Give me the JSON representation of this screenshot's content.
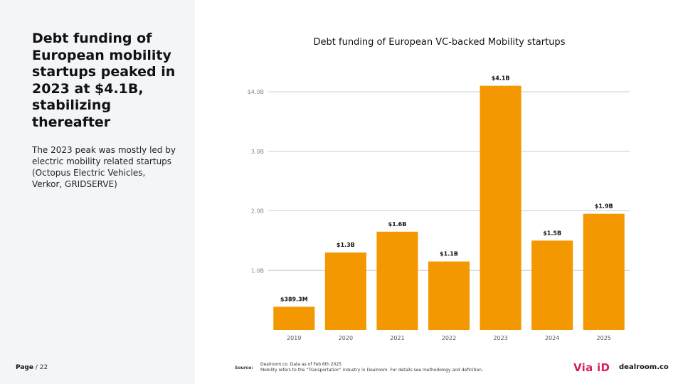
{
  "sidebar": {
    "headline": "Debt funding of European mobility startups peaked in 2023 at $4.1B, stabilizing thereafter",
    "subtext": "The 2023 peak was mostly led by electric mobility related startups (Octopus Electric Vehicles, Verkor, GRIDSERVE)",
    "page_label": "Page",
    "page_number": "/ 22"
  },
  "chart_data": {
    "type": "bar",
    "title": "Debt funding of European VC-backed Mobility startups",
    "categories": [
      "2019",
      "2020",
      "2021",
      "2022",
      "2023",
      "2024",
      "2025"
    ],
    "values": [
      0.3893,
      1.3,
      1.65,
      1.15,
      4.1,
      1.5,
      1.95
    ],
    "data_labels": [
      "$389.3M",
      "$1.3B",
      "$1.6B",
      "$1.1B",
      "$4.1B",
      "$1.5B",
      "$1.9B"
    ],
    "yticks": [
      1.0,
      2.0,
      3.0,
      4.0
    ],
    "ytick_labels": [
      "1.0B",
      "2.0B",
      "3.0B",
      "$4.0B"
    ],
    "ylim": [
      0,
      4.0
    ],
    "xlabel": "",
    "ylabel": "",
    "grid": true,
    "bar_color": "#f39800",
    "grid_color": "#cccccc"
  },
  "footer": {
    "source_label": "Source:",
    "source_line1": "Dealroom.co.  Data as of Feb 6th 2025",
    "source_line2": "Mobility refers to the “Transportation” industry in Dealroom. For details see methodology and definition.",
    "logo_via": "Via iD",
    "logo_dealroom": "dealroom.co"
  }
}
